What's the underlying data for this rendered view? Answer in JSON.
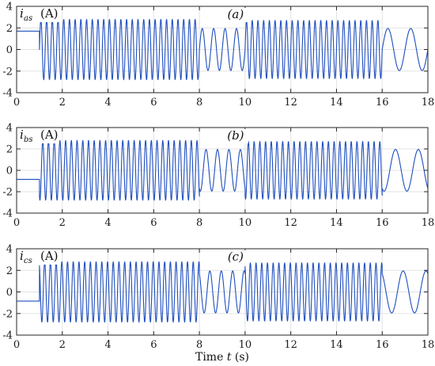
{
  "chart_data": [
    {
      "type": "line",
      "symbol": "i",
      "subscript": "as",
      "unit": "(A)",
      "panel_tag": "(a)",
      "xlim": [
        0,
        18
      ],
      "ylim": [
        -4,
        4
      ],
      "xticks": [
        0,
        2,
        4,
        6,
        8,
        10,
        12,
        14,
        16,
        18
      ],
      "yticks": [
        4,
        2,
        0,
        -2,
        -4
      ],
      "grid": true,
      "color": "#1f4fbf",
      "segments": [
        {
          "t0": 0,
          "t1": 1,
          "kind": "dc",
          "value": 1.7
        },
        {
          "t0": 1,
          "t1": 8,
          "kind": "sine",
          "amplitude": 2.8,
          "frequency_hz": 4.0,
          "phase_deg": 0
        },
        {
          "t0": 8,
          "t1": 10,
          "kind": "sine",
          "amplitude": 1.95,
          "frequency_hz": 2.0,
          "phase_deg": 0
        },
        {
          "t0": 10,
          "t1": 16,
          "kind": "sine",
          "amplitude": 2.7,
          "frequency_hz": 4.0,
          "phase_deg": 0
        },
        {
          "t0": 16,
          "t1": 18,
          "kind": "sine",
          "amplitude": 1.95,
          "frequency_hz": 1.0,
          "phase_deg": 0
        }
      ]
    },
    {
      "type": "line",
      "symbol": "i",
      "subscript": "bs",
      "unit": "(A)",
      "panel_tag": "(b)",
      "xlim": [
        0,
        18
      ],
      "ylim": [
        -4,
        4
      ],
      "xticks": [
        0,
        2,
        4,
        6,
        8,
        10,
        12,
        14,
        16,
        18
      ],
      "yticks": [
        4,
        2,
        0,
        -2,
        -4
      ],
      "grid": true,
      "color": "#1f4fbf",
      "segments": [
        {
          "t0": 0,
          "t1": 1,
          "kind": "dc",
          "value": -0.85
        },
        {
          "t0": 1,
          "t1": 8,
          "kind": "sine",
          "amplitude": 2.8,
          "frequency_hz": 4.0,
          "phase_deg": -120
        },
        {
          "t0": 8,
          "t1": 10,
          "kind": "sine",
          "amplitude": 1.95,
          "frequency_hz": 2.0,
          "phase_deg": -120
        },
        {
          "t0": 10,
          "t1": 16,
          "kind": "sine",
          "amplitude": 2.7,
          "frequency_hz": 4.0,
          "phase_deg": -120
        },
        {
          "t0": 16,
          "t1": 18,
          "kind": "sine",
          "amplitude": 1.95,
          "frequency_hz": 1.0,
          "phase_deg": -120
        }
      ]
    },
    {
      "type": "line",
      "symbol": "i",
      "subscript": "cs",
      "unit": "(A)",
      "panel_tag": "(c)",
      "xlim": [
        0,
        18
      ],
      "ylim": [
        -4,
        4
      ],
      "xticks": [
        0,
        2,
        4,
        6,
        8,
        10,
        12,
        14,
        16,
        18
      ],
      "yticks": [
        4,
        2,
        0,
        -2,
        -4
      ],
      "grid": true,
      "color": "#1f4fbf",
      "xlabel_text": "Time ",
      "xlabel_var": "t",
      "xlabel_unit": " (s)",
      "segments": [
        {
          "t0": 0,
          "t1": 1,
          "kind": "dc",
          "value": -0.85
        },
        {
          "t0": 1,
          "t1": 8,
          "kind": "sine",
          "amplitude": 2.8,
          "frequency_hz": 4.0,
          "phase_deg": 120
        },
        {
          "t0": 8,
          "t1": 10,
          "kind": "sine",
          "amplitude": 1.95,
          "frequency_hz": 2.0,
          "phase_deg": 120
        },
        {
          "t0": 10,
          "t1": 16,
          "kind": "sine",
          "amplitude": 2.7,
          "frequency_hz": 4.0,
          "phase_deg": 120
        },
        {
          "t0": 16,
          "t1": 18,
          "kind": "sine",
          "amplitude": 1.95,
          "frequency_hz": 1.0,
          "phase_deg": 120
        }
      ]
    }
  ]
}
